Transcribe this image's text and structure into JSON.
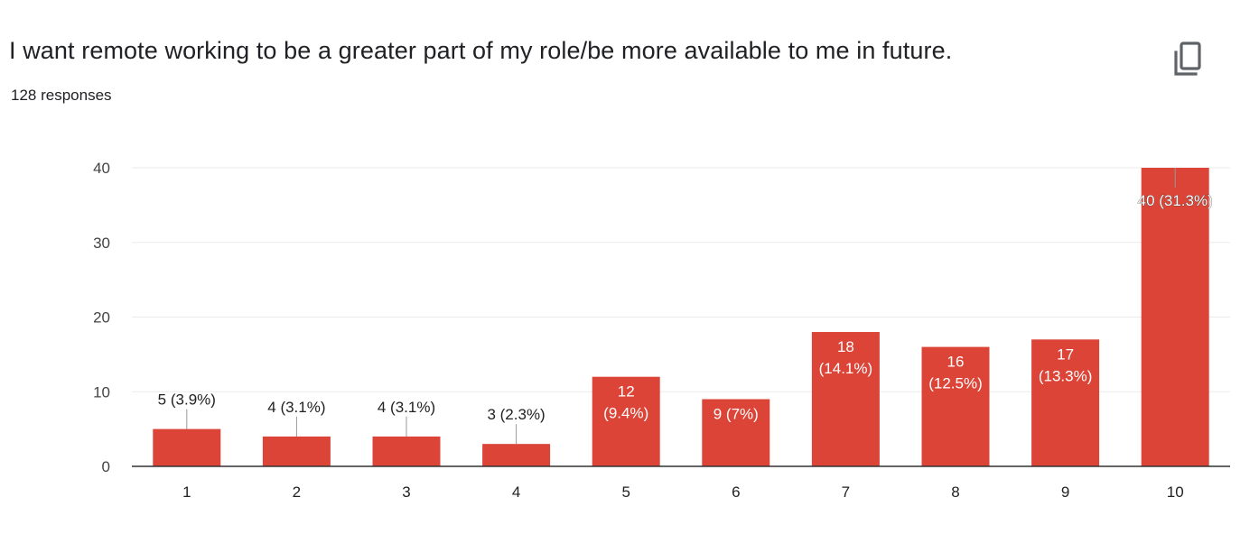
{
  "header": {
    "title": "I want remote working to be a greater part of my role/be more available to me in future.",
    "responses": "128 responses",
    "copy_icon": "copy-icon"
  },
  "colors": {
    "bar": "#db4437",
    "grid": "#ebebeb",
    "axis": "#333333",
    "leader": "#999999"
  },
  "chart_data": {
    "type": "bar",
    "categories": [
      "1",
      "2",
      "3",
      "4",
      "5",
      "6",
      "7",
      "8",
      "9",
      "10"
    ],
    "values": [
      5,
      4,
      4,
      3,
      12,
      9,
      18,
      16,
      17,
      40
    ],
    "data_labels": [
      "5 (3.9%)",
      "4 (3.1%)",
      "4 (3.1%)",
      "3 (2.3%)",
      "12 (9.4%)",
      "9 (7%)",
      "18 (14.1%)",
      "16 (12.5%)",
      "17 (13.3%)",
      "40 (31.3%)"
    ],
    "ylim": [
      0,
      40
    ],
    "yticks": [
      0,
      10,
      20,
      30,
      40
    ],
    "grid": true
  }
}
